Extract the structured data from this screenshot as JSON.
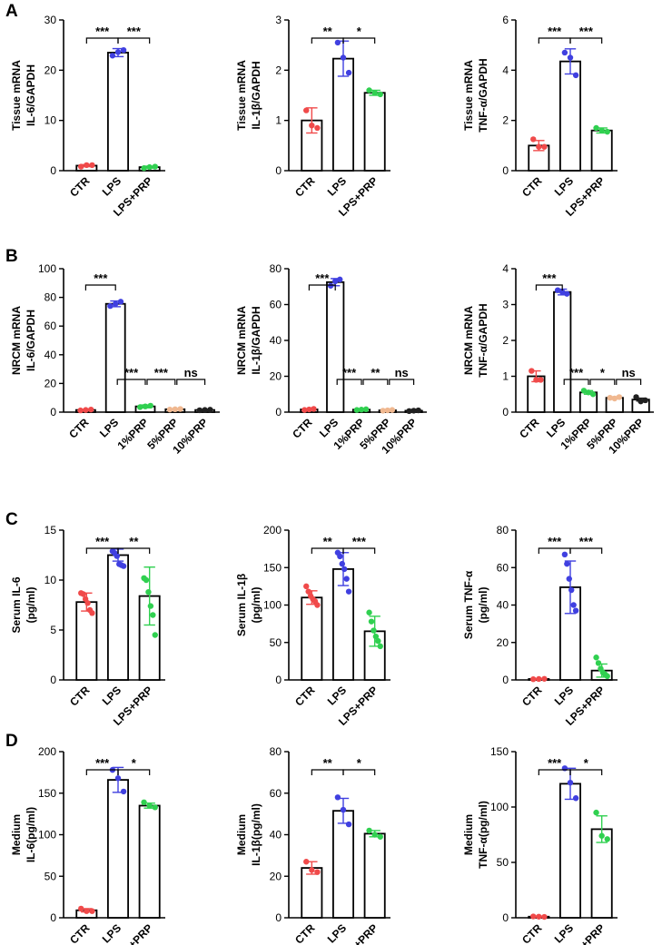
{
  "figure": {
    "colors": {
      "ctr": "#f04a4a",
      "lps": "#4040e0",
      "prp": "#30d050",
      "p5": "#f0b890",
      "p10": "#202020",
      "ink": "#000000"
    }
  },
  "panels": [
    {
      "letter": "A",
      "charts": [
        {
          "type": "bar",
          "ylabel": [
            "Tissue mRNA",
            "IL-6/GAPDH"
          ],
          "ylim": [
            0,
            30
          ],
          "ticks": [
            0,
            10,
            20,
            30
          ],
          "categories": [
            "CTR",
            "LPS",
            "LPS+PRP"
          ],
          "values": [
            1,
            23.5,
            0.7
          ],
          "errors": [
            0.2,
            0.8,
            0.2
          ],
          "points": [
            [
              0.8,
              1.1,
              1.1
            ],
            [
              22.9,
              23.6,
              24.0
            ],
            [
              0.5,
              0.7,
              0.8
            ]
          ],
          "colorKeys": [
            "ctr",
            "lps",
            "prp"
          ],
          "sig": [
            {
              "a": 0,
              "b": 1,
              "label": "***"
            },
            {
              "a": 1,
              "b": 2,
              "label": "***"
            }
          ]
        },
        {
          "type": "bar",
          "ylabel": [
            "Tissue mRNA",
            "IL-1β/GAPDH"
          ],
          "ylim": [
            0,
            3
          ],
          "ticks": [
            0,
            1,
            2,
            3
          ],
          "categories": [
            "CTR",
            "LPS",
            "LPS+PRP"
          ],
          "values": [
            1.0,
            2.23,
            1.55
          ],
          "errors": [
            0.25,
            0.35,
            0.05
          ],
          "points": [
            [
              1.2,
              0.9,
              0.85
            ],
            [
              2.55,
              2.25,
              1.95
            ],
            [
              1.6,
              1.55,
              1.52
            ]
          ],
          "colorKeys": [
            "ctr",
            "lps",
            "prp"
          ],
          "sig": [
            {
              "a": 0,
              "b": 1,
              "label": "**"
            },
            {
              "a": 1,
              "b": 2,
              "label": "*"
            }
          ]
        },
        {
          "type": "bar",
          "ylabel": [
            "Tissue mRNA",
            "TNF-α/GAPDH"
          ],
          "ylim": [
            0,
            6
          ],
          "ticks": [
            0,
            2,
            4,
            6
          ],
          "categories": [
            "CTR",
            "LPS",
            "LPS+PRP"
          ],
          "values": [
            1.0,
            4.35,
            1.6
          ],
          "errors": [
            0.2,
            0.5,
            0.1
          ],
          "points": [
            [
              1.25,
              0.95,
              0.95
            ],
            [
              4.7,
              4.5,
              3.8
            ],
            [
              1.7,
              1.6,
              1.55
            ]
          ],
          "colorKeys": [
            "ctr",
            "lps",
            "prp"
          ],
          "sig": [
            {
              "a": 0,
              "b": 1,
              "label": "***"
            },
            {
              "a": 1,
              "b": 2,
              "label": "***"
            }
          ]
        }
      ]
    },
    {
      "letter": "B",
      "charts": [
        {
          "type": "bar",
          "ylabel": [
            "NRCM mRNA",
            "IL-6/GAPDH"
          ],
          "ylim": [
            0,
            100
          ],
          "ticks": [
            0,
            20,
            40,
            60,
            80,
            100
          ],
          "categories": [
            "CTR",
            "LPS",
            "1%PRP",
            "5%PRP",
            "10%PRP"
          ],
          "values": [
            1.5,
            75.5,
            4.0,
            2.0,
            1.5
          ],
          "errors": [
            0.5,
            2.0,
            1.0,
            0.4,
            0.3
          ],
          "points": [
            [
              1.2,
              1.5,
              1.8
            ],
            [
              74,
              75.5,
              77
            ],
            [
              3.5,
              4.0,
              4.5
            ],
            [
              1.8,
              2.0,
              2.2
            ],
            [
              1.3,
              1.5,
              1.7
            ]
          ],
          "colorKeys": [
            "ctr",
            "lps",
            "prp",
            "p5",
            "p10"
          ],
          "sig": [
            {
              "a": 0,
              "b": 1,
              "label": "***"
            },
            {
              "a": 1,
              "b": 2,
              "label": "***"
            },
            {
              "a": 2,
              "b": 3,
              "label": "***"
            },
            {
              "a": 3,
              "b": 4,
              "label": "ns"
            }
          ]
        },
        {
          "type": "bar",
          "ylabel": [
            "NRCM mRNA",
            "IL-1β/GAPDH"
          ],
          "ylim": [
            0,
            80
          ],
          "ticks": [
            0,
            20,
            40,
            60,
            80
          ],
          "categories": [
            "CTR",
            "LPS",
            "1%PRP",
            "5%PRP",
            "10%PRP"
          ],
          "values": [
            1.5,
            72.5,
            1.4,
            1.0,
            0.8
          ],
          "errors": [
            0.4,
            2.0,
            0.4,
            0.3,
            0.2
          ],
          "points": [
            [
              1.2,
              1.5,
              1.8
            ],
            [
              70.5,
              73,
              74
            ],
            [
              1.2,
              1.4,
              1.6
            ],
            [
              0.8,
              1.0,
              1.2
            ],
            [
              0.6,
              0.8,
              1.0
            ]
          ],
          "colorKeys": [
            "ctr",
            "lps",
            "prp",
            "p5",
            "p10"
          ],
          "sig": [
            {
              "a": 0,
              "b": 1,
              "label": "***"
            },
            {
              "a": 1,
              "b": 2,
              "label": "***"
            },
            {
              "a": 2,
              "b": 3,
              "label": "**"
            },
            {
              "a": 3,
              "b": 4,
              "label": "ns"
            }
          ]
        },
        {
          "type": "bar",
          "ylabel": [
            "NRCM mRNA",
            "TNF-α/GAPDH"
          ],
          "ylim": [
            0,
            4
          ],
          "ticks": [
            0,
            1,
            2,
            3,
            4
          ],
          "categories": [
            "CTR",
            "LPS",
            "1%PRP",
            "5%PRP",
            "10%PRP"
          ],
          "values": [
            1.0,
            3.35,
            0.55,
            0.4,
            0.35
          ],
          "errors": [
            0.15,
            0.08,
            0.05,
            0.03,
            0.04
          ],
          "points": [
            [
              1.15,
              0.9,
              0.9
            ],
            [
              3.4,
              3.35,
              3.3
            ],
            [
              0.6,
              0.55,
              0.5
            ],
            [
              0.4,
              0.38,
              0.42
            ],
            [
              0.42,
              0.3,
              0.33
            ]
          ],
          "colorKeys": [
            "ctr",
            "lps",
            "prp",
            "p5",
            "p10"
          ],
          "sig": [
            {
              "a": 0,
              "b": 1,
              "label": "***"
            },
            {
              "a": 1,
              "b": 2,
              "label": "***"
            },
            {
              "a": 2,
              "b": 3,
              "label": "*"
            },
            {
              "a": 3,
              "b": 4,
              "label": "ns"
            }
          ]
        }
      ]
    },
    {
      "letter": "C",
      "charts": [
        {
          "type": "bar",
          "ylabel": [
            "Serum IL-6",
            "(pg/ml)"
          ],
          "ylim": [
            0,
            15
          ],
          "ticks": [
            0,
            5,
            10,
            15
          ],
          "categories": [
            "CTR",
            "LPS",
            "LPS+PRP"
          ],
          "values": [
            7.8,
            12.5,
            8.4
          ],
          "errors": [
            0.9,
            0.6,
            2.9
          ],
          "points": [
            [
              8.7,
              8.6,
              8.1,
              7.7,
              7.0,
              6.7
            ],
            [
              12.9,
              12.7,
              12.4,
              11.6,
              11.5,
              11.4
            ],
            [
              10.2,
              10.0,
              8.8,
              7.4,
              6.5,
              4.5
            ]
          ],
          "colorKeys": [
            "ctr",
            "lps",
            "prp"
          ],
          "sig": [
            {
              "a": 0,
              "b": 1,
              "label": "***"
            },
            {
              "a": 1,
              "b": 2,
              "label": "**"
            }
          ]
        },
        {
          "type": "bar",
          "ylabel": [
            "Serum IL-1β",
            "(pg/ml)"
          ],
          "ylim": [
            0,
            200
          ],
          "ticks": [
            0,
            50,
            100,
            150,
            200
          ],
          "categories": [
            "CTR",
            "LPS",
            "LPS+PRP"
          ],
          "values": [
            110,
            148,
            65
          ],
          "errors": [
            9,
            22,
            20
          ],
          "points": [
            [
              125,
              118,
              112,
              108,
              105,
              100
            ],
            [
              170,
              165,
              155,
              148,
              135,
              118
            ],
            [
              90,
              78,
              66,
              58,
              52,
              45
            ]
          ],
          "colorKeys": [
            "ctr",
            "lps",
            "prp"
          ],
          "sig": [
            {
              "a": 0,
              "b": 1,
              "label": "**"
            },
            {
              "a": 1,
              "b": 2,
              "label": "***"
            }
          ]
        },
        {
          "type": "bar",
          "ylabel": [
            "Serum TNF-α",
            "(pg/ml)"
          ],
          "ylim": [
            0,
            80
          ],
          "ticks": [
            0,
            20,
            40,
            60,
            80
          ],
          "categories": [
            "CTR",
            "LPS",
            "LPS+PRP"
          ],
          "values": [
            0.5,
            49.5,
            5.0
          ],
          "errors": [
            0.2,
            14,
            3.5
          ],
          "points": [
            [
              0.4,
              0.5,
              0.6
            ],
            [
              67,
              62,
              54,
              48,
              40,
              37
            ],
            [
              12,
              9,
              6,
              4,
              3,
              2
            ]
          ],
          "colorKeys": [
            "ctr",
            "lps",
            "prp"
          ],
          "sig": [
            {
              "a": 0,
              "b": 1,
              "label": "***"
            },
            {
              "a": 1,
              "b": 2,
              "label": "***"
            }
          ]
        }
      ]
    },
    {
      "letter": "D",
      "charts": [
        {
          "type": "bar",
          "ylabel": [
            "Medium",
            "IL-6(pg/ml)"
          ],
          "ylim": [
            0,
            200
          ],
          "ticks": [
            0,
            50,
            100,
            150,
            200
          ],
          "categories": [
            "CTR",
            "LPS",
            "LPS+PRP"
          ],
          "values": [
            9,
            166,
            135
          ],
          "errors": [
            2,
            15,
            3
          ],
          "points": [
            [
              11,
              8,
              8
            ],
            [
              178,
              168,
              152
            ],
            [
              139,
              135,
              133
            ]
          ],
          "colorKeys": [
            "ctr",
            "lps",
            "prp"
          ],
          "sig": [
            {
              "a": 0,
              "b": 1,
              "label": "***"
            },
            {
              "a": 1,
              "b": 2,
              "label": "*"
            }
          ]
        },
        {
          "type": "bar",
          "ylabel": [
            "Medium",
            "IL-1β(pg/ml)"
          ],
          "ylim": [
            0,
            80
          ],
          "ticks": [
            0,
            20,
            40,
            60,
            80
          ],
          "categories": [
            "CTR",
            "LPS",
            "LPS+PRP"
          ],
          "values": [
            24,
            51.5,
            40.5
          ],
          "errors": [
            3,
            6,
            1.5
          ],
          "points": [
            [
              27,
              23,
              22
            ],
            [
              58,
              52,
              45
            ],
            [
              42,
              40,
              39
            ]
          ],
          "colorKeys": [
            "ctr",
            "lps",
            "prp"
          ],
          "sig": [
            {
              "a": 0,
              "b": 1,
              "label": "**"
            },
            {
              "a": 1,
              "b": 2,
              "label": "*"
            }
          ]
        },
        {
          "type": "bar",
          "ylabel": [
            "Medium",
            "TNF-α(pg/ml)"
          ],
          "ylim": [
            0,
            150
          ],
          "ticks": [
            0,
            50,
            100,
            150
          ],
          "categories": [
            "CTR",
            "LPS",
            "LPS+PRP"
          ],
          "values": [
            1,
            121,
            80
          ],
          "errors": [
            0.5,
            14,
            12
          ],
          "points": [
            [
              1.2,
              1.0,
              0.8
            ],
            [
              135,
              122,
              108
            ],
            [
              95,
              74,
              71
            ]
          ],
          "colorKeys": [
            "ctr",
            "lps",
            "prp"
          ],
          "sig": [
            {
              "a": 0,
              "b": 1,
              "label": "***"
            },
            {
              "a": 1,
              "b": 2,
              "label": "*"
            }
          ]
        }
      ]
    }
  ]
}
